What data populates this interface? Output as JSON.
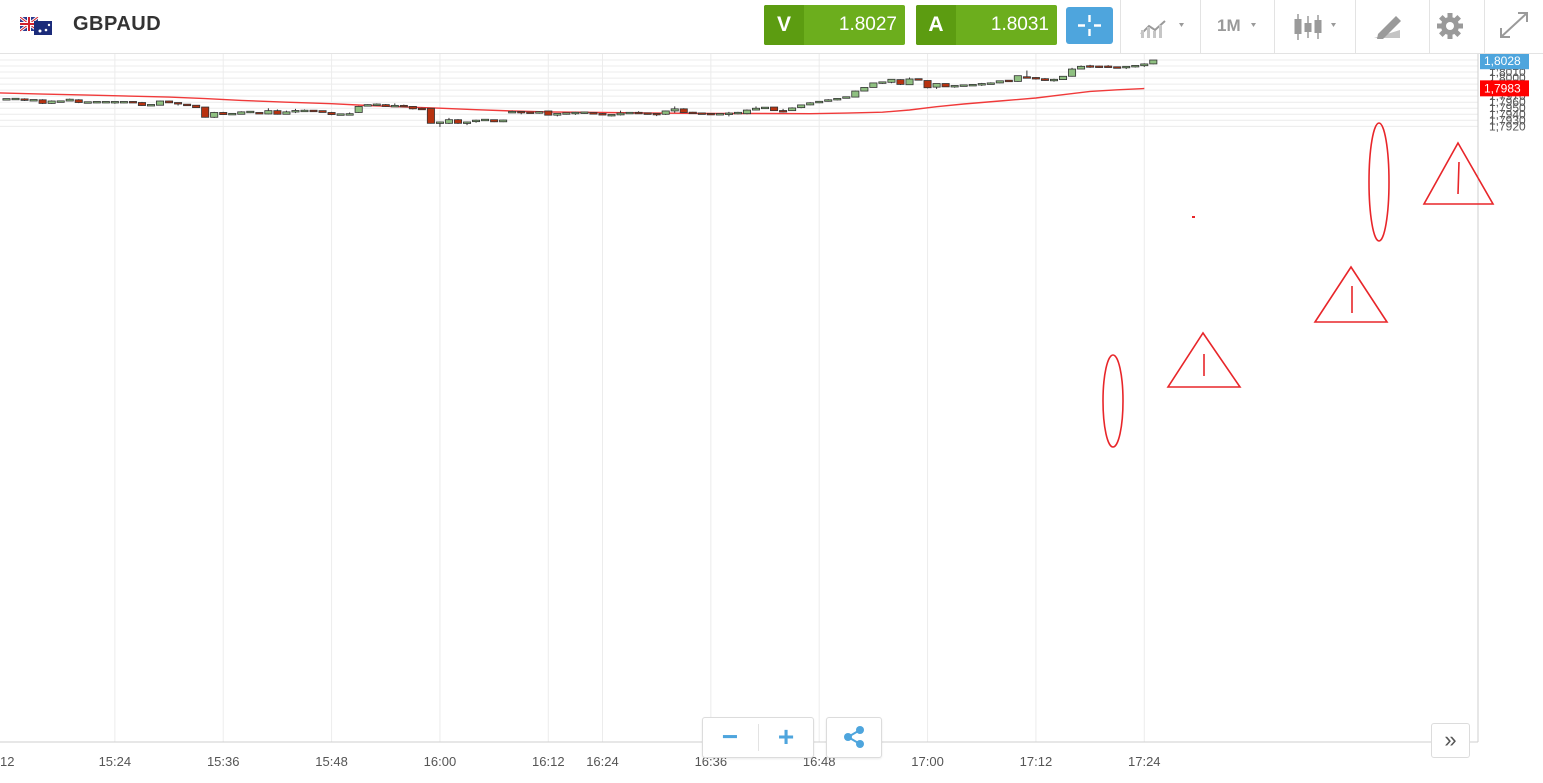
{
  "header": {
    "symbol": "GBPAUD",
    "flag_icon": "gb-au-flag-icon",
    "sell_label": "V",
    "sell_price": "1.8027",
    "buy_label": "A",
    "buy_price": "1.8031",
    "timeframe": "1M",
    "colors": {
      "quote_green": "#6cae1d",
      "quote_green_dark": "#5c9c11",
      "active_blue": "#4ea5dd"
    }
  },
  "chart_data": {
    "type": "candlestick",
    "ylim": [
      1.7917,
      1.8033
    ],
    "y_ticks": [
      "1,7920",
      "1,7930",
      "1,7940",
      "1,7950",
      "1,7960",
      "1,7970",
      "1,7980",
      "1,7990",
      "1,8000",
      "1,8010",
      "1,8020",
      "1,8030"
    ],
    "x_ticks": [
      {
        "bar": -1,
        "label": "12"
      },
      {
        "bar": 12,
        "label": "15:24"
      },
      {
        "bar": 24,
        "label": "15:36"
      },
      {
        "bar": 36,
        "label": "15:48"
      },
      {
        "bar": 48,
        "label": "16:00"
      },
      {
        "bar": 60,
        "label": "16:12"
      },
      {
        "bar": 66,
        "label": "16:24"
      },
      {
        "bar": 78,
        "label": "16:36"
      },
      {
        "bar": 90,
        "label": "16:48"
      },
      {
        "bar": 102,
        "label": "17:00"
      },
      {
        "bar": 114,
        "label": "17:12"
      },
      {
        "bar": 126,
        "label": "17:24"
      }
    ],
    "candles": [
      [
        1.79645,
        1.79655,
        1.79635,
        1.7965
      ],
      [
        1.7965,
        1.7967,
        1.79645,
        1.79655
      ],
      [
        1.79655,
        1.79665,
        1.7962,
        1.7963
      ],
      [
        1.7963,
        1.7964,
        1.7962,
        1.79635
      ],
      [
        1.7964,
        1.7965,
        1.7957,
        1.7958
      ],
      [
        1.7958,
        1.7963,
        1.79575,
        1.7962
      ],
      [
        1.7961,
        1.7962,
        1.796,
        1.7961
      ],
      [
        1.7962,
        1.7966,
        1.7962,
        1.7965
      ],
      [
        1.7964,
        1.7965,
        1.79585,
        1.79595
      ],
      [
        1.79595,
        1.79605,
        1.79585,
        1.79595
      ],
      [
        1.79595,
        1.7961,
        1.79585,
        1.79605
      ],
      [
        1.796,
        1.796,
        1.796,
        1.796
      ],
      [
        1.796,
        1.79605,
        1.79575,
        1.796
      ],
      [
        1.79595,
        1.7961,
        1.79585,
        1.79605
      ],
      [
        1.79605,
        1.79615,
        1.79595,
        1.79595
      ],
      [
        1.79595,
        1.79605,
        1.7954,
        1.79545
      ],
      [
        1.79545,
        1.79555,
        1.79545,
        1.79555
      ],
      [
        1.7955,
        1.79625,
        1.79545,
        1.7962
      ],
      [
        1.7962,
        1.79625,
        1.79585,
        1.7959
      ],
      [
        1.7959,
        1.79595,
        1.79545,
        1.79575
      ],
      [
        1.7956,
        1.7956,
        1.7954,
        1.7955
      ],
      [
        1.7955,
        1.7955,
        1.7951,
        1.7951
      ],
      [
        1.7952,
        1.7952,
        1.79345,
        1.7935
      ],
      [
        1.7935,
        1.7944,
        1.7934,
        1.7943
      ],
      [
        1.7943,
        1.7944,
        1.7939,
        1.79395
      ],
      [
        1.79395,
        1.7942,
        1.7939,
        1.7941
      ],
      [
        1.794,
        1.7945,
        1.794,
        1.7944
      ],
      [
        1.79435,
        1.7945,
        1.7942,
        1.7944
      ],
      [
        1.7942,
        1.7943,
        1.79405,
        1.79415
      ],
      [
        1.79405,
        1.795,
        1.794,
        1.7946
      ],
      [
        1.7946,
        1.7948,
        1.79395,
        1.794
      ],
      [
        1.794,
        1.7946,
        1.794,
        1.7944
      ],
      [
        1.7944,
        1.7949,
        1.7942,
        1.7946
      ],
      [
        1.7945,
        1.7948,
        1.7944,
        1.7946
      ],
      [
        1.7946,
        1.7946,
        1.7945,
        1.7945
      ],
      [
        1.7946,
        1.7946,
        1.7943,
        1.7943
      ],
      [
        1.7943,
        1.7944,
        1.79385,
        1.79395
      ],
      [
        1.79395,
        1.794,
        1.79385,
        1.79395
      ],
      [
        1.79395,
        1.7943,
        1.79385,
        1.794
      ],
      [
        1.7943,
        1.7954,
        1.79425,
        1.7953
      ],
      [
        1.79535,
        1.79565,
        1.7953,
        1.7956
      ],
      [
        1.7955,
        1.7958,
        1.7954,
        1.79565
      ],
      [
        1.7956,
        1.7957,
        1.79525,
        1.7953
      ],
      [
        1.7953,
        1.7958,
        1.79525,
        1.7954
      ],
      [
        1.7954,
        1.7956,
        1.79525,
        1.7953
      ],
      [
        1.7953,
        1.79535,
        1.7948,
        1.7949
      ],
      [
        1.7949,
        1.7951,
        1.7948,
        1.79485
      ],
      [
        1.795,
        1.795,
        1.79245,
        1.7925
      ],
      [
        1.7925,
        1.7928,
        1.7919,
        1.7927
      ],
      [
        1.7925,
        1.7934,
        1.7924,
        1.7931
      ],
      [
        1.7931,
        1.7932,
        1.7924,
        1.7925
      ],
      [
        1.7925,
        1.7928,
        1.7922,
        1.7927
      ],
      [
        1.7928,
        1.7931,
        1.7926,
        1.793
      ],
      [
        1.793,
        1.7932,
        1.793,
        1.7931
      ],
      [
        1.7931,
        1.7931,
        1.7927,
        1.79275
      ],
      [
        1.79275,
        1.7931,
        1.7927,
        1.79305
      ],
      [
        1.7943,
        1.7946,
        1.7943,
        1.7944
      ],
      [
        1.7944,
        1.7944,
        1.794,
        1.7943
      ],
      [
        1.7943,
        1.7943,
        1.7942,
        1.7942
      ],
      [
        1.7942,
        1.7945,
        1.7941,
        1.7944
      ],
      [
        1.79455,
        1.79455,
        1.79385,
        1.79385
      ],
      [
        1.79385,
        1.7942,
        1.79365,
        1.79415
      ],
      [
        1.7941,
        1.7942,
        1.79395,
        1.79415
      ],
      [
        1.7941,
        1.7944,
        1.7939,
        1.7943
      ],
      [
        1.7942,
        1.7944,
        1.7941,
        1.7943
      ],
      [
        1.7942,
        1.7943,
        1.7941,
        1.7941
      ],
      [
        1.7941,
        1.7942,
        1.7939,
        1.7939
      ],
      [
        1.79385,
        1.79395,
        1.79365,
        1.79385
      ],
      [
        1.7939,
        1.7946,
        1.7938,
        1.7942
      ],
      [
        1.7942,
        1.7943,
        1.7941,
        1.7942
      ],
      [
        1.79425,
        1.7945,
        1.79405,
        1.79415
      ],
      [
        1.79415,
        1.7942,
        1.79395,
        1.79405
      ],
      [
        1.79405,
        1.7941,
        1.7937,
        1.794
      ],
      [
        1.794,
        1.7946,
        1.7939,
        1.79455
      ],
      [
        1.79455,
        1.7953,
        1.79425,
        1.7949
      ],
      [
        1.7949,
        1.795,
        1.7943,
        1.7943
      ],
      [
        1.7943,
        1.7944,
        1.7941,
        1.79415
      ],
      [
        1.79415,
        1.7942,
        1.794,
        1.79405
      ],
      [
        1.79405,
        1.7941,
        1.79395,
        1.794
      ],
      [
        1.794,
        1.7941,
        1.79395,
        1.794
      ],
      [
        1.79405,
        1.7944,
        1.79365,
        1.7941
      ],
      [
        1.7941,
        1.7944,
        1.794,
        1.7943
      ],
      [
        1.7941,
        1.7948,
        1.794,
        1.7947
      ],
      [
        1.7947,
        1.7953,
        1.79465,
        1.795
      ],
      [
        1.795,
        1.7952,
        1.795,
        1.7951
      ],
      [
        1.7952,
        1.7952,
        1.7946,
        1.7946
      ],
      [
        1.7946,
        1.7949,
        1.7943,
        1.7944
      ],
      [
        1.7946,
        1.79515,
        1.7946,
        1.79505
      ],
      [
        1.7951,
        1.7956,
        1.795,
        1.79555
      ],
      [
        1.79555,
        1.796,
        1.7955,
        1.7959
      ],
      [
        1.7959,
        1.7962,
        1.79585,
        1.79615
      ],
      [
        1.79615,
        1.7965,
        1.7961,
        1.7964
      ],
      [
        1.7964,
        1.79665,
        1.7963,
        1.7966
      ],
      [
        1.7967,
        1.79695,
        1.79665,
        1.79685
      ],
      [
        1.79685,
        1.7979,
        1.7968,
        1.79785
      ],
      [
        1.79785,
        1.7985,
        1.79785,
        1.79845
      ],
      [
        1.79845,
        1.79925,
        1.79845,
        1.7992
      ],
      [
        1.7992,
        1.79935,
        1.79905,
        1.7993
      ],
      [
        1.7993,
        1.79985,
        1.79915,
        1.7998
      ],
      [
        1.79975,
        1.7998,
        1.79885,
        1.79895
      ],
      [
        1.7989,
        1.8001,
        1.79885,
        1.79985
      ],
      [
        1.79985,
        1.7999,
        1.79965,
        1.7997
      ],
      [
        1.7996,
        1.7996,
        1.7983,
        1.7984
      ],
      [
        1.7985,
        1.7991,
        1.7982,
        1.7991
      ],
      [
        1.7991,
        1.7991,
        1.79855,
        1.79855
      ],
      [
        1.7986,
        1.7988,
        1.7984,
        1.7987
      ],
      [
        1.7987,
        1.7988,
        1.7986,
        1.7988
      ],
      [
        1.79875,
        1.799,
        1.7987,
        1.7989
      ],
      [
        1.7989,
        1.7992,
        1.7987,
        1.79905
      ],
      [
        1.799,
        1.7993,
        1.79895,
        1.79915
      ],
      [
        1.7992,
        1.7996,
        1.79915,
        1.79955
      ],
      [
        1.79955,
        1.7996,
        1.7994,
        1.7995
      ],
      [
        1.79945,
        1.8003,
        1.7994,
        1.8004
      ],
      [
        1.80015,
        1.80125,
        1.8001,
        1.80005
      ],
      [
        1.80005,
        1.80015,
        1.79975,
        1.7999
      ],
      [
        1.7999,
        1.8,
        1.79955,
        1.7996
      ],
      [
        1.7996,
        1.7999,
        1.7994,
        1.79975
      ],
      [
        1.79975,
        1.8003,
        1.7997,
        1.8003
      ],
      [
        1.8003,
        1.8017,
        1.80025,
        1.8015
      ],
      [
        1.8015,
        1.8021,
        1.8015,
        1.80195
      ],
      [
        1.80195,
        1.8022,
        1.8017,
        1.8019
      ],
      [
        1.8019,
        1.80205,
        1.8017,
        1.80185
      ],
      [
        1.8019,
        1.80215,
        1.80175,
        1.80185
      ],
      [
        1.8018,
        1.8019,
        1.8016,
        1.8017
      ],
      [
        1.8018,
        1.802,
        1.8015,
        1.80185
      ],
      [
        1.80185,
        1.80215,
        1.80175,
        1.8021
      ],
      [
        1.80205,
        1.80245,
        1.80185,
        1.80235
      ],
      [
        1.80235,
        1.803,
        1.8023,
        1.803
      ]
    ],
    "moving_average": [
      [
        -1,
        1.79754
      ],
      [
        4,
        1.79735
      ],
      [
        9,
        1.79718
      ],
      [
        14,
        1.797
      ],
      [
        18,
        1.79684
      ],
      [
        22,
        1.7966
      ],
      [
        26,
        1.7963
      ],
      [
        31,
        1.796
      ],
      [
        36,
        1.79575
      ],
      [
        40,
        1.79545
      ],
      [
        44,
        1.79522
      ],
      [
        48,
        1.795
      ],
      [
        52,
        1.79475
      ],
      [
        56,
        1.79455
      ],
      [
        60,
        1.7944
      ],
      [
        66,
        1.7943
      ],
      [
        72,
        1.7942
      ],
      [
        78,
        1.79412
      ],
      [
        84,
        1.79413
      ],
      [
        89,
        1.7941
      ],
      [
        93,
        1.7942
      ],
      [
        97,
        1.79435
      ],
      [
        100,
        1.7947
      ],
      [
        103,
        1.79525
      ],
      [
        106,
        1.7957
      ],
      [
        110,
        1.7962
      ],
      [
        114,
        1.7967
      ],
      [
        117,
        1.79725
      ],
      [
        120,
        1.7978
      ],
      [
        123,
        1.79805
      ],
      [
        126,
        1.79828
      ]
    ],
    "price_labels": [
      {
        "value": 1.8028,
        "text": "1,8028",
        "color": "#4ea5dd"
      },
      {
        "value": 1.7983,
        "text": "1,7983",
        "color": "#ff0000"
      }
    ],
    "colors": {
      "bull": "#8fc081",
      "bear": "#b73210",
      "moving_average": "#f03a3a",
      "annotation": "#e8262a"
    },
    "grid": true
  }
}
